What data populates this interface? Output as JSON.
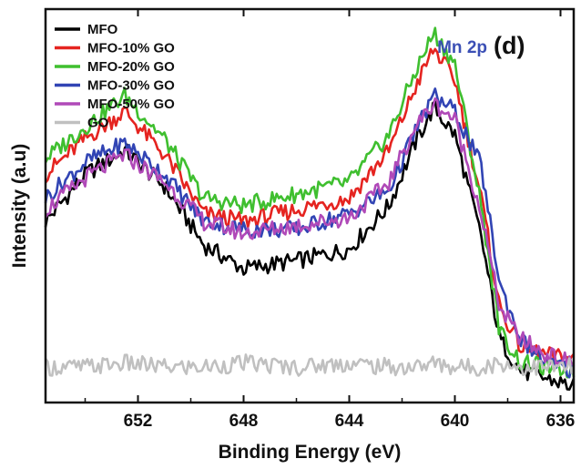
{
  "chart_data": {
    "type": "line",
    "title": "",
    "xlabel": "Binding Energy (eV)",
    "ylabel": "Intensity (a.u)",
    "x_reversed": true,
    "xlim": [
      655.5,
      635.5
    ],
    "ylim": [
      0,
      100
    ],
    "x_ticks": [
      652,
      648,
      644,
      640,
      636
    ],
    "x_tick_labels": [
      "652",
      "648",
      "644",
      "640",
      "636"
    ],
    "y_ticks_labeled": false,
    "grid": false,
    "legend_position": "top-left",
    "annotations": [
      {
        "text": "Mn 2p",
        "color": "#3b4fb5"
      },
      {
        "text": "(d)",
        "color": "#111111"
      }
    ],
    "x": [
      655.5,
      654,
      652.5,
      651,
      649.5,
      648,
      646,
      644,
      642.5,
      641.5,
      640.8,
      640,
      639,
      638.3,
      637.5,
      636.5,
      635.5
    ],
    "series": [
      {
        "name": "MFO",
        "color": "#000000",
        "values": [
          46,
          58,
          64,
          55,
          40,
          34,
          36,
          39,
          50,
          66,
          75,
          68,
          42,
          16,
          8,
          6,
          4
        ]
      },
      {
        "name": "MFO-10% GO",
        "color": "#e52420",
        "values": [
          58,
          67,
          74,
          63,
          48,
          46,
          49,
          52,
          64,
          80,
          90,
          82,
          52,
          24,
          14,
          12,
          11
        ]
      },
      {
        "name": "MFO-20% GO",
        "color": "#3fbf2f",
        "values": [
          62,
          70,
          78,
          67,
          52,
          50,
          53,
          56,
          68,
          84,
          94,
          86,
          50,
          18,
          10,
          9,
          8
        ]
      },
      {
        "name": "MFO-30% GO",
        "color": "#3144b4",
        "values": [
          52,
          61,
          66,
          58,
          46,
          44,
          44,
          48,
          54,
          69,
          78,
          74,
          60,
          30,
          16,
          10,
          8
        ]
      },
      {
        "name": "MFO-50% GO",
        "color": "#b049b8",
        "values": [
          49,
          57,
          63,
          56,
          46,
          43,
          45,
          47,
          56,
          70,
          76,
          72,
          48,
          24,
          16,
          12,
          10
        ]
      },
      {
        "name": "GO",
        "color": "#c0c0c0",
        "values": [
          9,
          9,
          10,
          9,
          9,
          10,
          9,
          10,
          9,
          9,
          10,
          9,
          9,
          10,
          9,
          9,
          9
        ]
      }
    ]
  }
}
